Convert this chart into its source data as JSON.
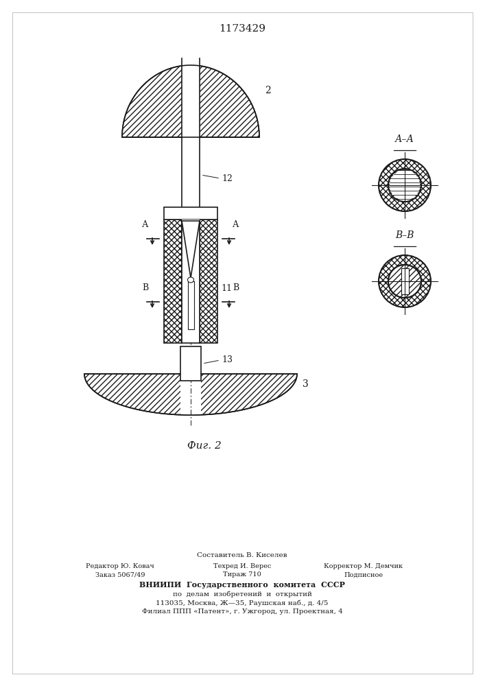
{
  "title": "1173429",
  "fig_label": "Фиг. 2",
  "bg_color": "#ffffff",
  "line_color": "#1a1a1a",
  "footer_lines": [
    "Составитель В. Киселев",
    "Редактор Ю. Ковач",
    "Техред И. Верес",
    "Корректор М. Демчик",
    "Заказ 5067/49",
    "Тираж 710",
    "Подписное",
    "ВНИИПИ  Государственного  комитета  СССР",
    "по  делам  изобретений  и  открытий",
    "113035, Москва, Ж—35, Раушская наб., д. 4/5",
    "Филиал ППП «Патент», г. Ужгород, ул. Проектная, 4"
  ]
}
